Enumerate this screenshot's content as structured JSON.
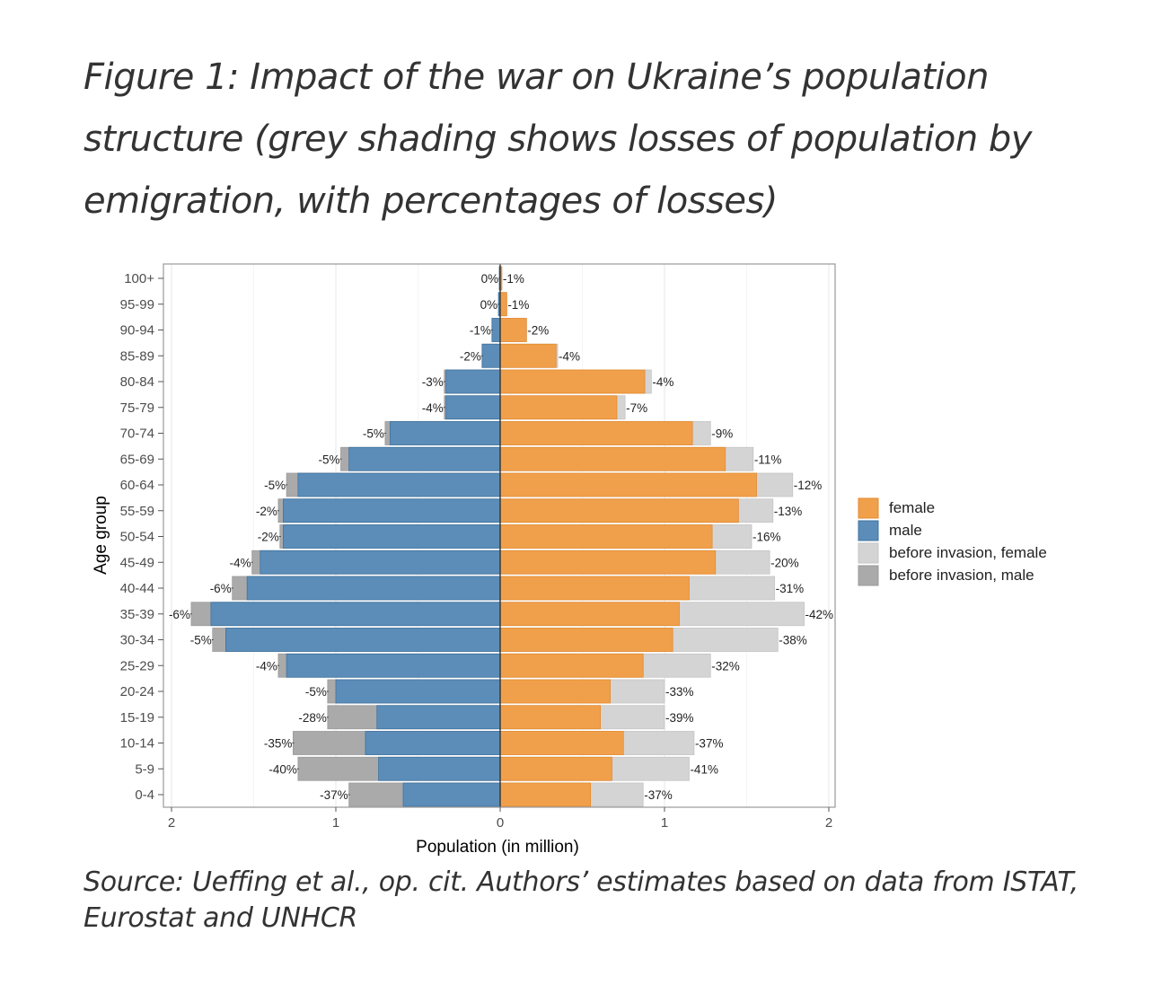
{
  "figure": {
    "title": "Figure 1: Impact of the war on Ukraine’s population structure (grey shading shows losses of population by emigration, with percentages of losses)",
    "source": "Source: Ueffing et al., op. cit. Authors’ estimates based on data from ISTAT, Eurostat and UNHCR"
  },
  "colors": {
    "female": "#f0a04b",
    "female_stroke": "#e58a2e",
    "male": "#5b8db8",
    "male_stroke": "#3f73a0",
    "before_female": "#d4d4d4",
    "before_male": "#aaaaaa",
    "panel_border": "#999999",
    "grid": "#ebebeb"
  },
  "chart_data": {
    "type": "bar",
    "orientation": "horizontal-population-pyramid",
    "xlabel": "Population (in million)",
    "ylabel": "Age group",
    "xlim": [
      -2.05,
      2.05
    ],
    "xticks": [
      -2,
      -1,
      0,
      1,
      2
    ],
    "xtick_labels": [
      "2",
      "1",
      "0",
      "1",
      "2"
    ],
    "categories": [
      "0-4",
      "5-9",
      "10-14",
      "15-19",
      "20-24",
      "25-29",
      "30-34",
      "35-39",
      "40-44",
      "45-49",
      "50-54",
      "55-59",
      "60-64",
      "65-69",
      "70-74",
      "75-79",
      "80-84",
      "85-89",
      "90-94",
      "95-99",
      "100+"
    ],
    "series": [
      {
        "name": "male",
        "values": [
          0.59,
          0.74,
          0.82,
          0.75,
          1.0,
          1.3,
          1.67,
          1.76,
          1.54,
          1.46,
          1.32,
          1.32,
          1.23,
          0.92,
          0.67,
          0.33,
          0.33,
          0.11,
          0.05,
          0.01,
          0.005
        ]
      },
      {
        "name": "before invasion, male",
        "values": [
          0.92,
          1.23,
          1.26,
          1.05,
          1.05,
          1.35,
          1.75,
          1.88,
          1.63,
          1.51,
          1.34,
          1.35,
          1.3,
          0.97,
          0.7,
          0.34,
          0.34,
          0.11,
          0.05,
          0.01,
          0.005
        ]
      },
      {
        "name": "female",
        "values": [
          0.55,
          0.68,
          0.75,
          0.61,
          0.67,
          0.87,
          1.05,
          1.09,
          1.15,
          1.31,
          1.29,
          1.45,
          1.56,
          1.37,
          1.17,
          0.71,
          0.88,
          0.34,
          0.16,
          0.04,
          0.01
        ]
      },
      {
        "name": "before invasion, female",
        "values": [
          0.87,
          1.15,
          1.18,
          1.0,
          1.0,
          1.28,
          1.69,
          1.85,
          1.67,
          1.64,
          1.53,
          1.66,
          1.78,
          1.54,
          1.28,
          0.76,
          0.92,
          0.35,
          0.16,
          0.04,
          0.01
        ]
      }
    ],
    "male_loss_labels": [
      "-37%",
      "-40%",
      "-35%",
      "-28%",
      "-5%",
      "-4%",
      "-5%",
      "-6%",
      "-6%",
      "-4%",
      "-2%",
      "-2%",
      "-5%",
      "-5%",
      "-5%",
      "-4%",
      "-3%",
      "-2%",
      "-1%",
      "0%",
      "0%"
    ],
    "female_loss_labels": [
      "-37%",
      "-41%",
      "-37%",
      "-39%",
      "-33%",
      "-32%",
      "-38%",
      "-42%",
      "-31%",
      "-20%",
      "-16%",
      "-13%",
      "-12%",
      "-11%",
      "-9%",
      "-7%",
      "-4%",
      "-4%",
      "-2%",
      "-1%",
      "-1%"
    ],
    "legend": {
      "placement": "right",
      "entries": [
        "female",
        "male",
        "before invasion, female",
        "before invasion, male"
      ]
    }
  }
}
